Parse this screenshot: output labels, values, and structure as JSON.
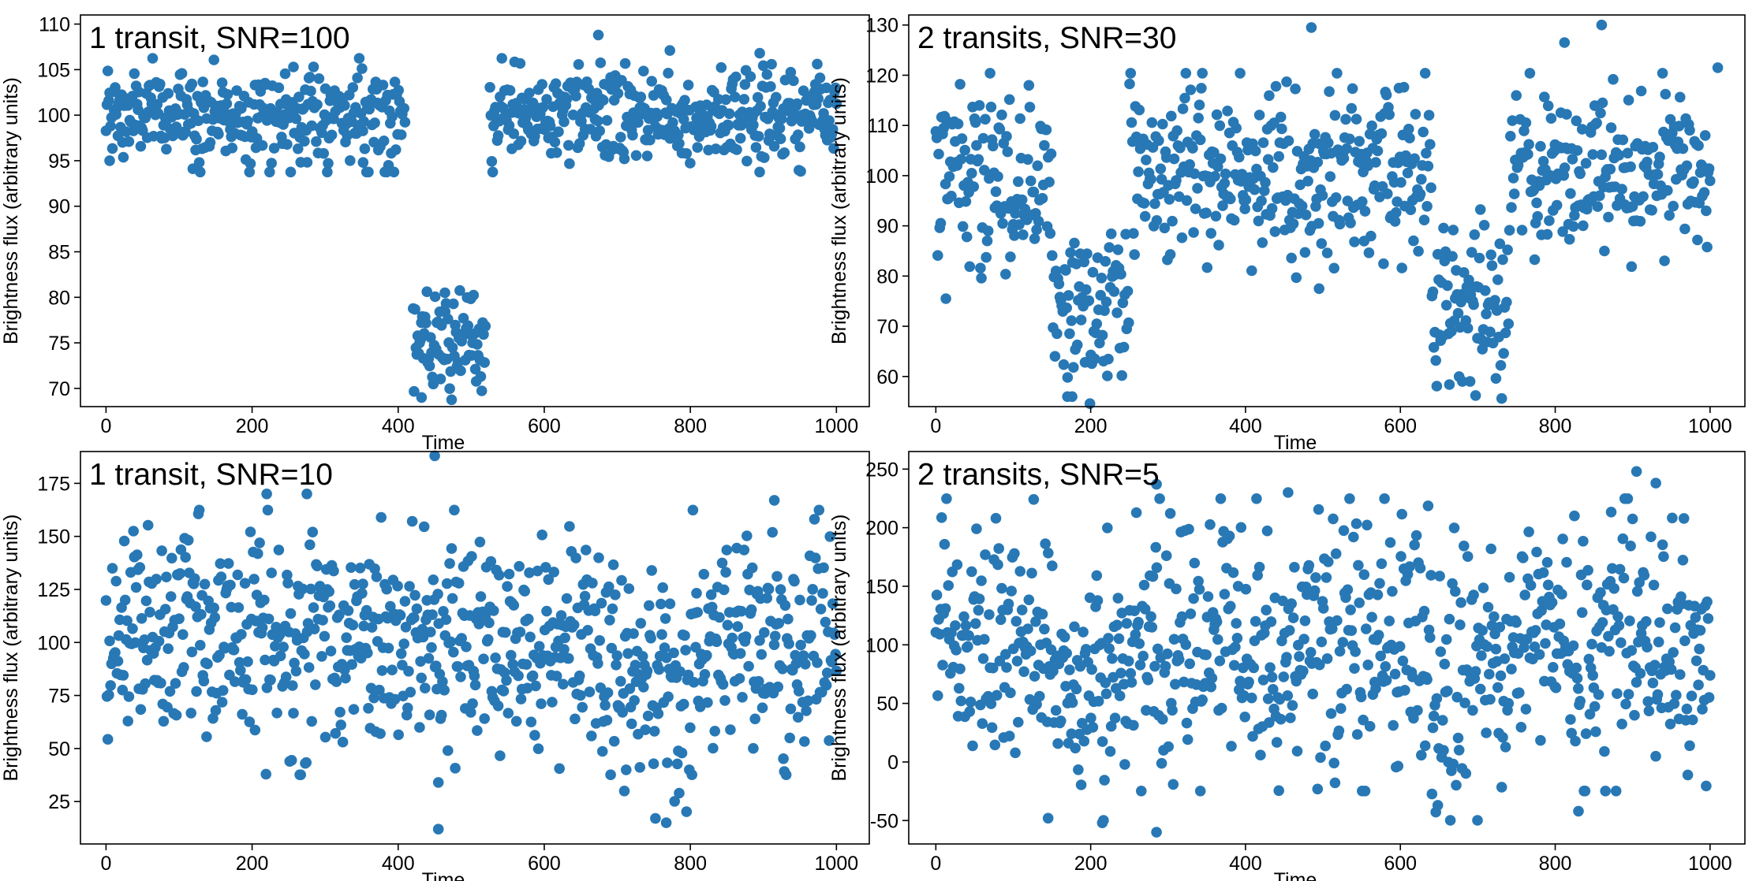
{
  "figure": {
    "marker_color": "#2878b5",
    "axis_color": "#000000"
  },
  "chart_data": [
    {
      "type": "scatter",
      "title": "1 transit, SNR=100",
      "xlabel": "Time",
      "ylabel": "Brightness flux (arbitrary units)",
      "xlim": [
        -35,
        1045
      ],
      "ylim": [
        68,
        111
      ],
      "xticks": [
        0,
        200,
        400,
        600,
        800,
        1000
      ],
      "yticks": [
        70,
        75,
        80,
        85,
        90,
        95,
        100,
        105,
        110
      ],
      "n_points": 800,
      "baseline": 100,
      "noise_sd": 2.6,
      "transits": [
        {
          "start": 420,
          "end": 520,
          "depth": 25.5
        }
      ],
      "outliers": [
        {
          "x": 674,
          "y": 108.8
        },
        {
          "x": 772,
          "y": 107.1
        },
        {
          "x": 895,
          "y": 106.8
        },
        {
          "x": 5,
          "y": 95
        },
        {
          "x": 352,
          "y": 94.8
        },
        {
          "x": 464,
          "y": 80.5
        },
        {
          "x": 432,
          "y": 69
        }
      ]
    },
    {
      "type": "scatter",
      "title": "2 transits, SNR=30",
      "xlabel": "Time",
      "ylabel": "Brightness flux (arbitrary units)",
      "xlim": [
        -35,
        1045
      ],
      "ylim": [
        54,
        132
      ],
      "xticks": [
        0,
        200,
        400,
        600,
        800,
        1000
      ],
      "yticks": [
        60,
        70,
        80,
        90,
        100,
        110,
        120,
        130
      ],
      "n_points": 800,
      "baseline": 100,
      "noise_sd": 8.5,
      "transits": [
        {
          "start": 150,
          "end": 250,
          "depth": 25
        },
        {
          "start": 640,
          "end": 740,
          "depth": 25
        }
      ],
      "outliers": [
        {
          "x": 485,
          "y": 129.5
        },
        {
          "x": 860,
          "y": 130
        },
        {
          "x": 812,
          "y": 126.5
        },
        {
          "x": 170,
          "y": 56
        },
        {
          "x": 176,
          "y": 56
        },
        {
          "x": 680,
          "y": 59
        },
        {
          "x": 690,
          "y": 59
        },
        {
          "x": 13,
          "y": 75.5
        },
        {
          "x": 495,
          "y": 77.5
        },
        {
          "x": 1010,
          "y": 121.5
        }
      ]
    },
    {
      "type": "scatter",
      "title": "1 transit, SNR=10",
      "xlabel": "Time",
      "ylabel": "Brightness flux (arbitrary units)",
      "xlim": [
        -35,
        1045
      ],
      "ylim": [
        5,
        190
      ],
      "xticks": [
        0,
        200,
        400,
        600,
        800,
        1000
      ],
      "yticks": [
        25,
        50,
        75,
        100,
        125,
        150,
        175
      ],
      "n_points": 800,
      "baseline": 100,
      "noise_sd": 26,
      "transits": [
        {
          "start": 700,
          "end": 800,
          "depth": 25
        }
      ],
      "outliers": [
        {
          "x": 450,
          "y": 188
        },
        {
          "x": 455,
          "y": 12
        },
        {
          "x": 455,
          "y": 34
        },
        {
          "x": 767,
          "y": 15
        },
        {
          "x": 220,
          "y": 170
        },
        {
          "x": 275,
          "y": 170
        },
        {
          "x": 915,
          "y": 167
        }
      ]
    },
    {
      "type": "scatter",
      "title": "2 transits, SNR=5",
      "xlabel": "Time",
      "ylabel": "Brightness flux (arbitrary units)",
      "xlim": [
        -35,
        1045
      ],
      "ylim": [
        -70,
        265
      ],
      "xticks": [
        0,
        200,
        400,
        600,
        800,
        1000
      ],
      "yticks": [
        -50,
        0,
        50,
        100,
        150,
        200,
        250
      ],
      "n_points": 800,
      "baseline": 100,
      "noise_sd": 52,
      "transits": [
        {
          "start": 150,
          "end": 250,
          "depth": 25
        },
        {
          "start": 640,
          "end": 740,
          "depth": 25
        }
      ],
      "outliers": [
        {
          "x": 905,
          "y": 248
        },
        {
          "x": 930,
          "y": 238
        },
        {
          "x": 285,
          "y": 237
        },
        {
          "x": 285,
          "y": -60
        },
        {
          "x": 145,
          "y": -48
        },
        {
          "x": 215,
          "y": -52
        },
        {
          "x": 455,
          "y": 230
        },
        {
          "x": 830,
          "y": -42
        }
      ]
    }
  ]
}
